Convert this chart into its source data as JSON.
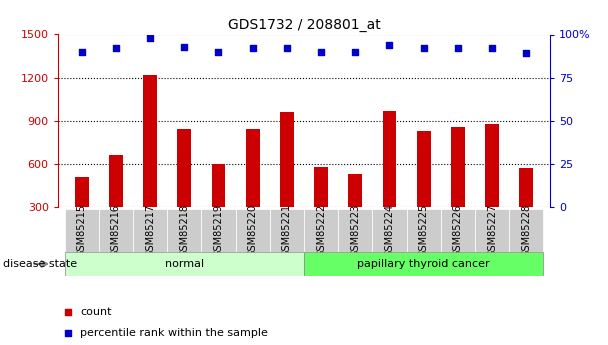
{
  "title": "GDS1732 / 208801_at",
  "samples": [
    "GSM85215",
    "GSM85216",
    "GSM85217",
    "GSM85218",
    "GSM85219",
    "GSM85220",
    "GSM85221",
    "GSM85222",
    "GSM85223",
    "GSM85224",
    "GSM85225",
    "GSM85226",
    "GSM85227",
    "GSM85228"
  ],
  "bar_values": [
    510,
    660,
    1220,
    840,
    600,
    840,
    960,
    575,
    530,
    970,
    830,
    855,
    875,
    570
  ],
  "dot_values_pct": [
    90,
    92,
    98,
    93,
    90,
    92,
    92,
    90,
    90,
    94,
    92,
    92,
    92,
    89
  ],
  "bar_color": "#cc0000",
  "dot_color": "#0000cc",
  "ylim_left": [
    300,
    1500
  ],
  "ylim_right": [
    0,
    100
  ],
  "yticks_left": [
    300,
    600,
    900,
    1200,
    1500
  ],
  "yticks_right": [
    0,
    25,
    50,
    75,
    100
  ],
  "yticklabels_right": [
    "0",
    "25",
    "50",
    "75",
    "100%"
  ],
  "groups": [
    {
      "label": "normal",
      "start": 0,
      "end": 7,
      "color": "#ccffcc"
    },
    {
      "label": "papillary thyroid cancer",
      "start": 7,
      "end": 14,
      "color": "#66ff66"
    }
  ],
  "disease_state_label": "disease state",
  "legend_items": [
    {
      "label": "count",
      "color": "#cc0000"
    },
    {
      "label": "percentile rank within the sample",
      "color": "#0000cc"
    }
  ],
  "background_color": "#ffffff",
  "tick_label_bg": "#cccccc",
  "bar_width": 0.4
}
